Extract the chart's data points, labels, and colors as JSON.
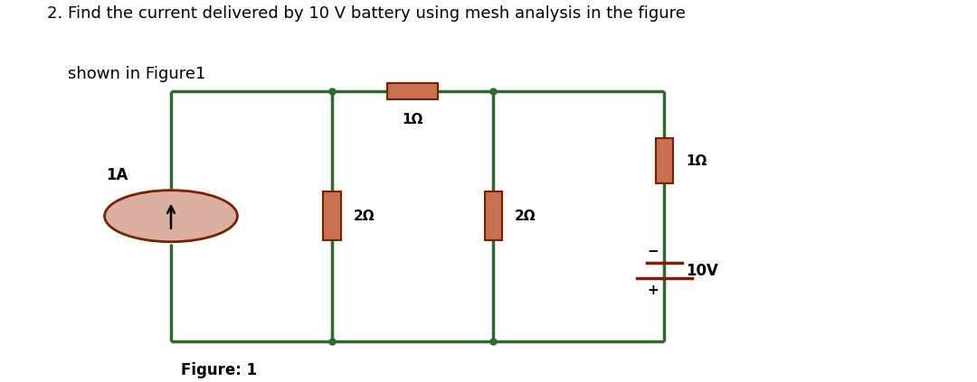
{
  "title_line1": "2. Find the current delivered by 10 V battery using mesh analysis in the figure",
  "title_line2": "    shown in Figure1",
  "figure_caption": "Figure: 1",
  "wire_color": "#2d6a2d",
  "resistor_color": "#7B2000",
  "resistor_fill": "#c87050",
  "bg_color": "#ffffff",
  "text_color": "#000000",
  "wire_lw": 2.5,
  "L": 0.175,
  "R": 0.68,
  "T": 0.76,
  "B": 0.1,
  "M1": 0.34,
  "M2": 0.505
}
